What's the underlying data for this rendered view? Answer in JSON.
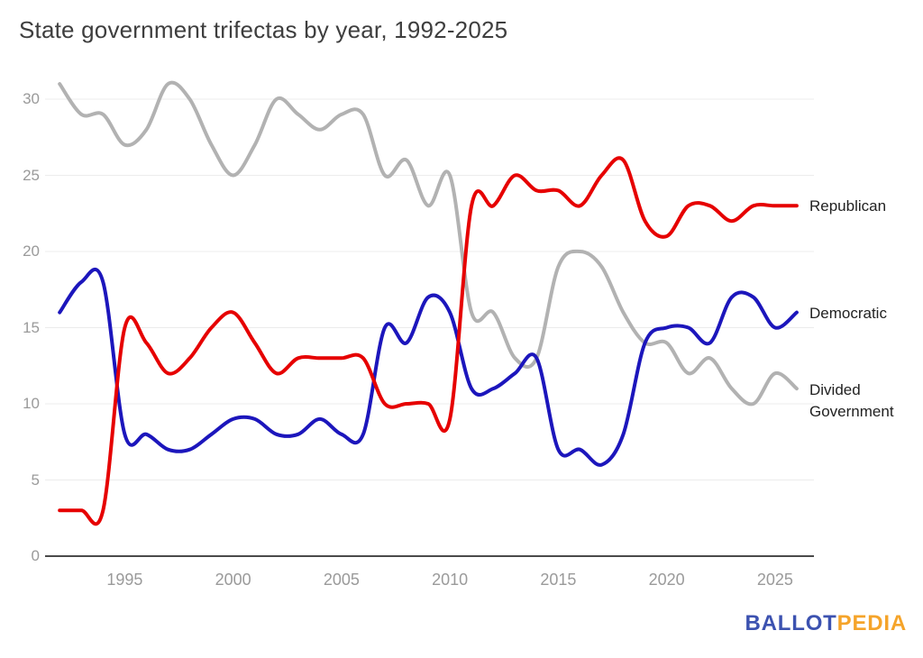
{
  "title": "State government trifectas by year, 1992-2025",
  "logo": {
    "part1": "BALLOT",
    "part2": "PEDIA",
    "part1_color": "#3c52b0",
    "part2_color": "#f5a42a"
  },
  "chart_data": {
    "type": "line",
    "title": "State government trifectas by year, 1992-2025",
    "xlabel": "",
    "ylabel": "",
    "x": [
      1992,
      1993,
      1994,
      1995,
      1996,
      1997,
      1998,
      1999,
      2000,
      2001,
      2002,
      2003,
      2004,
      2005,
      2006,
      2007,
      2008,
      2009,
      2010,
      2011,
      2012,
      2013,
      2014,
      2015,
      2016,
      2017,
      2018,
      2019,
      2020,
      2021,
      2022,
      2023,
      2024,
      2025,
      2026
    ],
    "series": [
      {
        "name": "Republican",
        "color": "#e60000",
        "values": [
          3,
          3,
          3,
          15,
          14,
          12,
          13,
          15,
          16,
          14,
          12,
          13,
          13,
          13,
          13,
          10,
          10,
          10,
          9,
          23,
          23,
          25,
          24,
          24,
          23,
          25,
          26,
          22,
          21,
          23,
          23,
          22,
          23,
          23,
          23
        ]
      },
      {
        "name": "Democratic",
        "color": "#1c16bc",
        "values": [
          16,
          18,
          18,
          8,
          8,
          7,
          7,
          8,
          9,
          9,
          8,
          8,
          9,
          8,
          8,
          15,
          14,
          17,
          16,
          11,
          11,
          12,
          13,
          7,
          7,
          6,
          8,
          14,
          15,
          15,
          14,
          17,
          17,
          15,
          16
        ]
      },
      {
        "name": "Divided Government",
        "color": "#b2b2b2",
        "values": [
          31,
          29,
          29,
          27,
          28,
          31,
          30,
          27,
          25,
          27,
          30,
          29,
          28,
          29,
          29,
          25,
          26,
          23,
          25,
          16,
          16,
          13,
          13,
          19,
          20,
          19,
          16,
          14,
          14,
          12,
          13,
          11,
          10,
          12,
          11
        ]
      }
    ],
    "xticks": [
      1995,
      2000,
      2005,
      2010,
      2015,
      2020,
      2025
    ],
    "yticks": [
      0,
      5,
      10,
      15,
      20,
      25,
      30
    ],
    "ylim": [
      0,
      31
    ],
    "grid": true,
    "grid_color": "#ececec",
    "axis_color": "#4a4a4a",
    "legend_position": "right-end-labels",
    "curve": "smooth"
  }
}
